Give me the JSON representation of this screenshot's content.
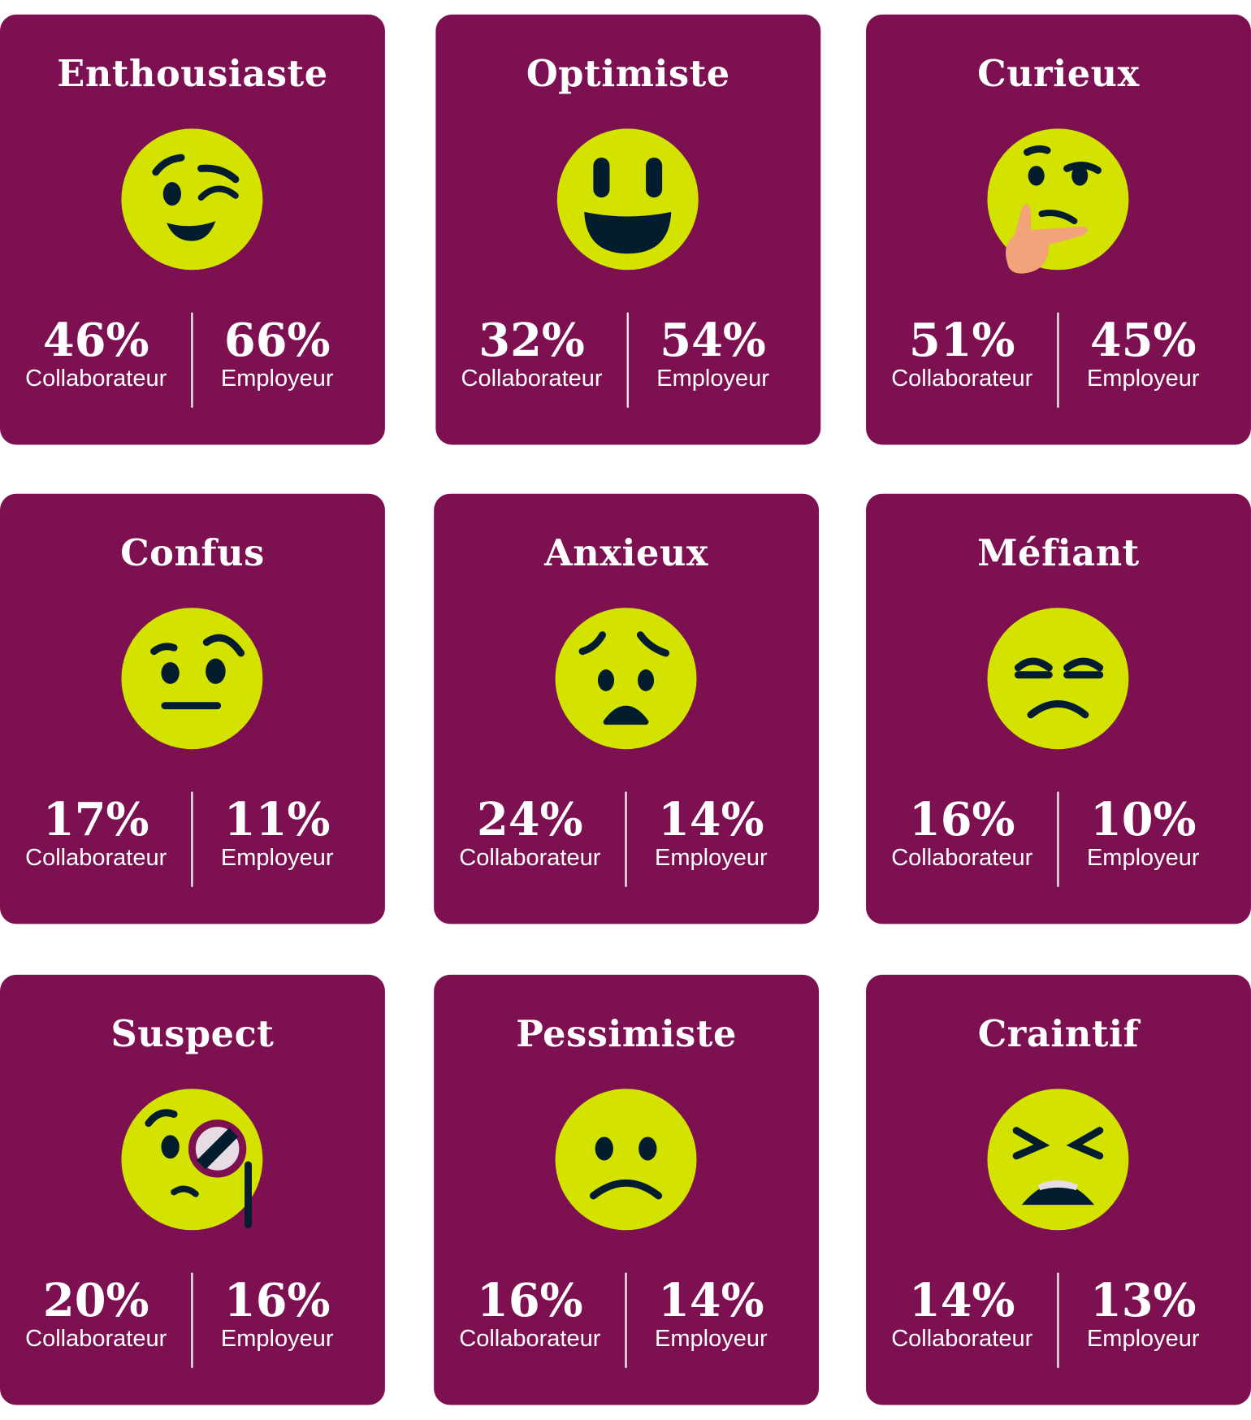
{
  "colors": {
    "card": "#7D1050",
    "face": "#D4E200",
    "features": "#041D2E"
  },
  "labels": {
    "left": "Collaborateur",
    "right": "Employeur"
  },
  "cards": [
    {
      "title": "Enthousiaste",
      "icon": "winking-face-icon",
      "collaborateur": "46%",
      "employeur": "66%"
    },
    {
      "title": "Optimiste",
      "icon": "grinning-face-icon",
      "collaborateur": "32%",
      "employeur": "54%"
    },
    {
      "title": "Curieux",
      "icon": "thinking-face-icon",
      "collaborateur": "51%",
      "employeur": "45%"
    },
    {
      "title": "Confus",
      "icon": "raised-eyebrow-face-icon",
      "collaborateur": "17%",
      "employeur": "11%"
    },
    {
      "title": "Anxieux",
      "icon": "worried-face-icon",
      "collaborateur": "24%",
      "employeur": "14%"
    },
    {
      "title": "Méfiant",
      "icon": "unamused-face-icon",
      "collaborateur": "16%",
      "employeur": "10%"
    },
    {
      "title": "Suspect",
      "icon": "monocle-face-icon",
      "collaborateur": "20%",
      "employeur": "16%"
    },
    {
      "title": "Pessimiste",
      "icon": "frowning-face-icon",
      "collaborateur": "16%",
      "employeur": "14%"
    },
    {
      "title": "Craintif",
      "icon": "tired-face-icon",
      "collaborateur": "14%",
      "employeur": "13%"
    }
  ]
}
